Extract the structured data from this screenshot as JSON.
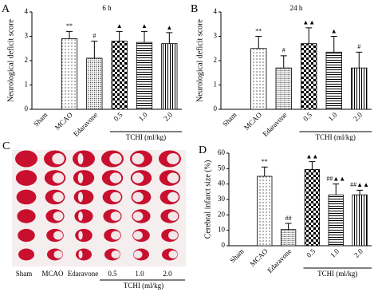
{
  "chart_data": [
    {
      "type": "bar",
      "letter": "A",
      "title": "6 h",
      "y_label": "Neurological deficit score",
      "categories": [
        "Sham",
        "MCAO",
        "Edaravone",
        "0.5",
        "1.0",
        "2.0"
      ],
      "values": [
        0,
        2.9,
        2.1,
        2.8,
        2.75,
        2.7
      ],
      "errors": [
        0,
        0.3,
        0.7,
        0.4,
        0.45,
        0.45
      ],
      "annotations": [
        null,
        "**",
        "#",
        "▲",
        "▲",
        "▲"
      ],
      "patterns": [
        "none",
        "dots",
        "dense-dots",
        "checker",
        "hlines",
        "vlines"
      ],
      "color": "#000000",
      "ylim": [
        0,
        4
      ],
      "yticks": [
        0,
        1,
        2,
        3,
        4
      ],
      "group_label": "TCHI (ml/kg)"
    },
    {
      "type": "bar",
      "letter": "B",
      "title": "24 h",
      "y_label": "Neurological deficit score",
      "categories": [
        "Sham",
        "MCAO",
        "Edaravone",
        "0.5",
        "1.0",
        "2.0"
      ],
      "values": [
        0,
        2.5,
        1.7,
        2.7,
        2.35,
        1.7
      ],
      "errors": [
        0,
        0.5,
        0.5,
        0.65,
        0.65,
        0.65
      ],
      "annotations": [
        null,
        "**",
        "#",
        "▲▲",
        "▲",
        "#"
      ],
      "patterns": [
        "none",
        "dots",
        "dense-dots",
        "checker",
        "hlines",
        "vlines"
      ],
      "color": "#000000",
      "ylim": [
        0,
        4
      ],
      "yticks": [
        0,
        1,
        2,
        3,
        4
      ],
      "group_label": "TCHI (ml/kg)"
    },
    {
      "type": "bar",
      "letter": "D",
      "y_label": "Cerebral infarct size (%)",
      "categories": [
        "Sham",
        "MCAO",
        "Edaravone",
        "0.5",
        "1.0",
        "2.0"
      ],
      "values": [
        0,
        45,
        10.5,
        49.5,
        33,
        33
      ],
      "errors": [
        0,
        6,
        4,
        5,
        7,
        3
      ],
      "annotations": [
        null,
        "**",
        "##",
        "▲▲",
        "##▲▲",
        "##▲▲"
      ],
      "patterns": [
        "none",
        "dots",
        "dense-dots",
        "checker",
        "hlines",
        "vlines"
      ],
      "color": "#000000",
      "ylim": [
        0,
        60
      ],
      "yticks": [
        0,
        10,
        20,
        30,
        40,
        50,
        60
      ],
      "group_label": "TCHI (ml/kg)"
    }
  ],
  "photo_panel": {
    "letter": "C",
    "labels": [
      "Sham",
      "MCAO",
      "Edaravone",
      "0.5",
      "1.0",
      "2.0"
    ],
    "group_label": "TCHI (ml/kg)"
  }
}
